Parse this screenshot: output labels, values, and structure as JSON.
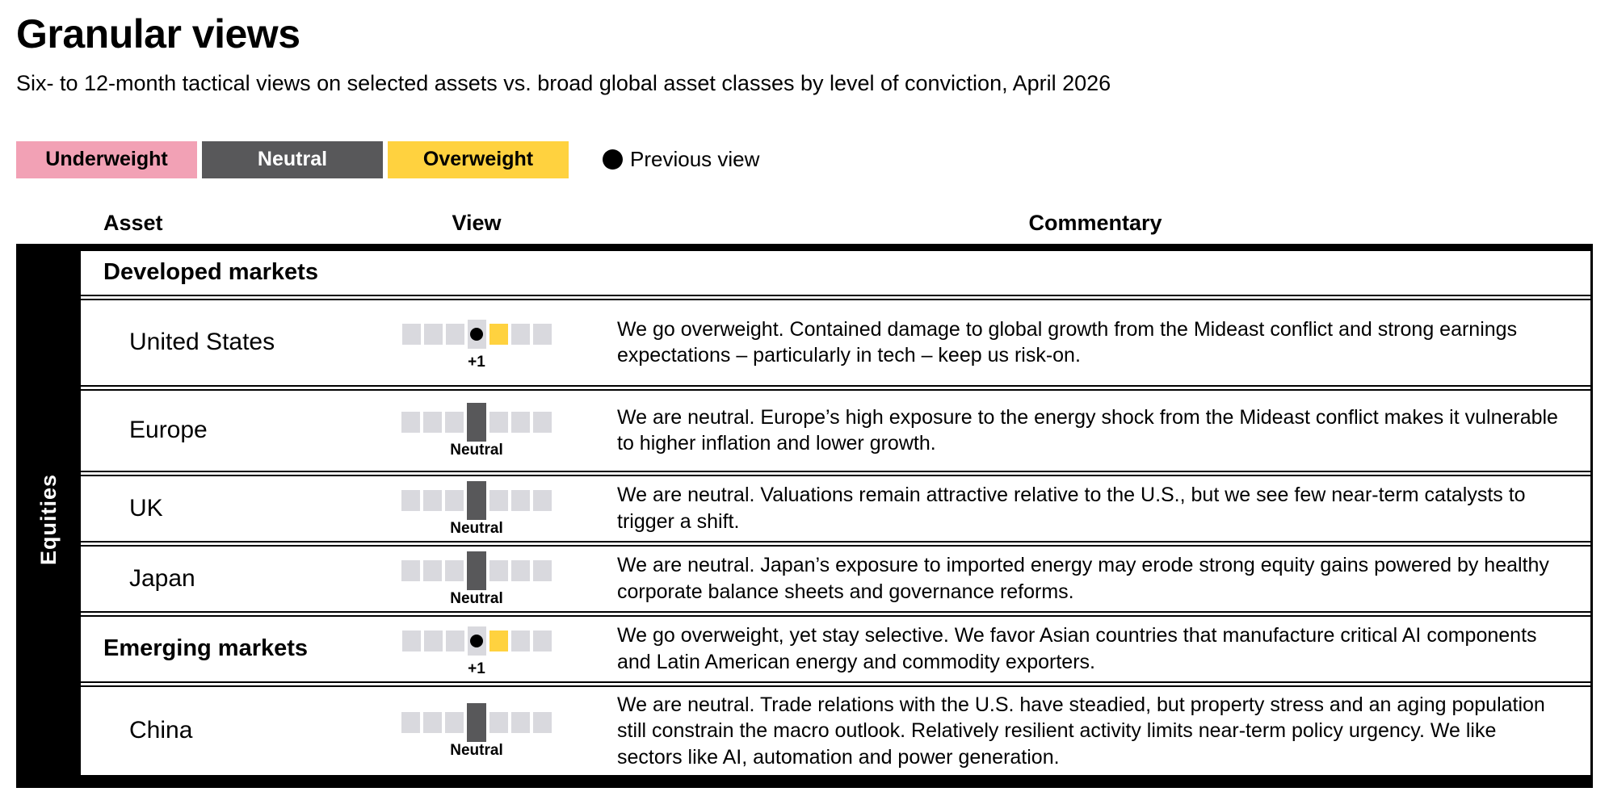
{
  "page": {
    "title": "Granular views",
    "subtitle": "Six- to 12-month tactical views on selected assets vs. broad global asset classes by level of conviction, April 2026"
  },
  "legend": {
    "underweight_label": "Underweight",
    "neutral_label": "Neutral",
    "overweight_label": "Overweight",
    "previous_view_label": "Previous view"
  },
  "colors": {
    "underweight_pink": "#F2A1B5",
    "neutral_gray": "#58585A",
    "overweight_yellow": "#FFD23F",
    "scale_light_gray": "#D9D9DE",
    "black": "#000000"
  },
  "table": {
    "columns": {
      "asset": "Asset",
      "view": "View",
      "commentary": "Commentary"
    },
    "group_label": "Equities",
    "rows": [
      {
        "type": "section",
        "asset": "Developed markets"
      },
      {
        "type": "asset",
        "asset": "United States",
        "view_position": 1,
        "previous_position": 0,
        "view_label": "+1",
        "commentary": "We go overweight. Contained damage to global growth from the Mideast conflict and strong earnings expectations – particularly in tech – keep us risk-on."
      },
      {
        "type": "asset",
        "asset": "Europe",
        "view_position": 0,
        "previous_position": 0,
        "view_label": "Neutral",
        "commentary": "We are neutral. Europe’s high exposure to the energy shock from the Mideast conflict makes it vulnerable to higher inflation and lower growth."
      },
      {
        "type": "asset",
        "asset": "UK",
        "view_position": 0,
        "previous_position": 0,
        "view_label": "Neutral",
        "commentary": "We are neutral. Valuations remain attractive relative to the U.S., but we see few near-term catalysts to trigger a shift."
      },
      {
        "type": "asset",
        "asset": "Japan",
        "view_position": 0,
        "previous_position": 0,
        "view_label": "Neutral",
        "commentary": "We are neutral. Japan’s exposure to imported energy may erode strong equity gains powered by healthy corporate balance sheets and governance reforms."
      },
      {
        "type": "section-asset",
        "asset": "Emerging markets",
        "view_position": 1,
        "previous_position": 0,
        "view_label": "+1",
        "commentary": "We go overweight, yet stay selective. We favor Asian countries that manufacture critical AI components and Latin American energy and commodity exporters."
      },
      {
        "type": "asset",
        "asset": "China",
        "view_position": 0,
        "previous_position": 0,
        "view_label": "Neutral",
        "commentary": "We are neutral. Trade relations with the U.S. have steadied, but property stress and an aging population still constrain the macro outlook. Relatively resilient activity limits near-term policy urgency. We like sectors like AI, automation and power generation."
      }
    ]
  }
}
